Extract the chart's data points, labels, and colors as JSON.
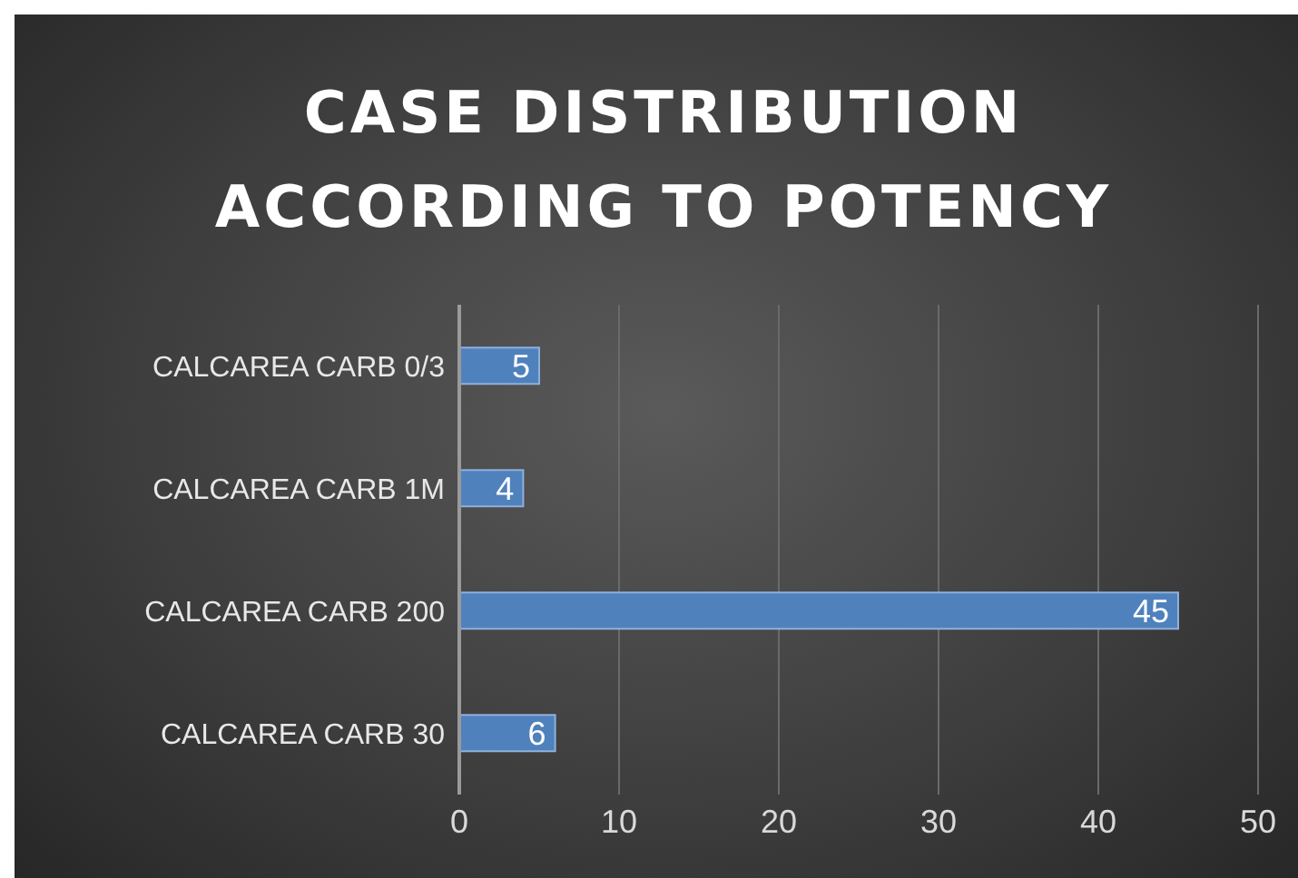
{
  "chart_data": {
    "type": "bar",
    "orientation": "horizontal",
    "title": "CASE DISTRIBUTION ACCORDING TO POTENCY",
    "categories": [
      "CALCAREA CARB 0/3",
      "CALCAREA CARB 1M",
      "CALCAREA CARB 200",
      "CALCAREA CARB 30"
    ],
    "values": [
      5,
      4,
      45,
      6
    ],
    "color": "#4f81bd",
    "data_labels": true,
    "xlim": [
      0,
      50
    ],
    "xticks": [
      0,
      10,
      20,
      30,
      40,
      50
    ],
    "grid": "x"
  }
}
